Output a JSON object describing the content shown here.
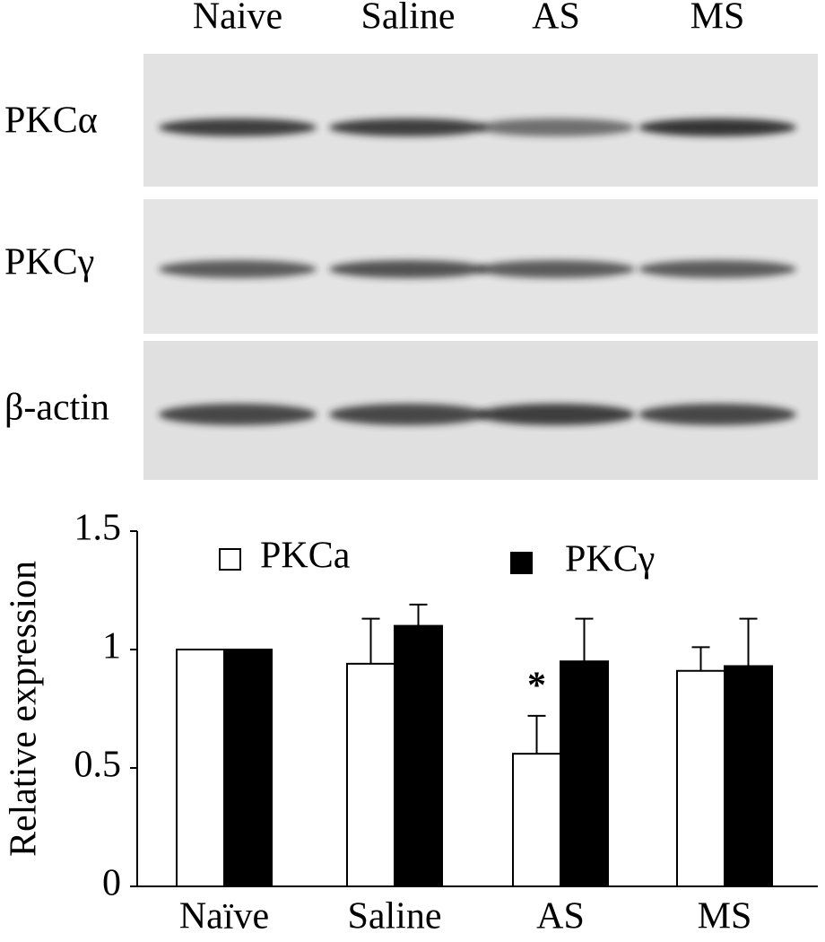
{
  "blot": {
    "lanes": [
      "Naive",
      "Saline",
      "AS",
      "MS"
    ],
    "rows": [
      "PKCα",
      "PKCγ",
      "β-actin"
    ]
  },
  "chart_data": {
    "type": "bar",
    "ylabel": "Relative expression",
    "categories": [
      "Naïve",
      "Saline",
      "AS",
      "MS"
    ],
    "series": [
      {
        "name": "PKCa",
        "color": "#ffffff",
        "values": [
          1.0,
          0.94,
          0.56,
          0.91
        ],
        "errors": [
          null,
          0.19,
          0.16,
          0.1
        ],
        "significance": [
          null,
          null,
          "*",
          null
        ]
      },
      {
        "name": "PKCγ",
        "color": "#000000",
        "values": [
          1.0,
          1.1,
          0.95,
          0.93
        ],
        "errors": [
          null,
          0.09,
          0.18,
          0.2
        ]
      }
    ],
    "ylim": [
      0,
      1.5
    ],
    "yticks": [
      0,
      0.5,
      1,
      1.5
    ]
  }
}
